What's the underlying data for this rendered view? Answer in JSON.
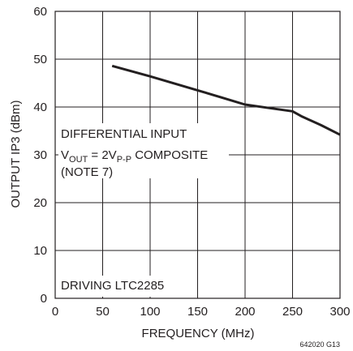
{
  "chart_data": {
    "type": "line",
    "xlabel": "FREQUENCY (MHz)",
    "ylabel": "OUTPUT IP3 (dBm)",
    "xlim": [
      0,
      300
    ],
    "ylim": [
      0,
      60
    ],
    "x_ticks": [
      "0",
      "50",
      "100",
      "150",
      "200",
      "250",
      "300"
    ],
    "y_ticks": [
      "0",
      "10",
      "20",
      "30",
      "40",
      "50",
      "60"
    ],
    "grid": true,
    "series": [
      {
        "x": [
          60,
          100,
          150,
          175,
          200,
          225,
          250,
          260,
          280,
          300
        ],
        "y": [
          48.6,
          46.4,
          43.5,
          42.0,
          40.5,
          39.8,
          39.1,
          38.0,
          36.2,
          34.2
        ]
      }
    ],
    "annotations": {
      "line1": "DIFFERENTIAL INPUT",
      "line2_main": "V",
      "line2_sub1": "OUT",
      "line2_mid": " = 2V",
      "line2_sub2": "P-P",
      "line2_end": " COMPOSITE",
      "line3": "(NOTE 7)",
      "bottom_note": "DRIVING LTC2285"
    },
    "figure_id": "642020 G13",
    "line_color": "#231f20",
    "grid_color": "#231f20"
  }
}
